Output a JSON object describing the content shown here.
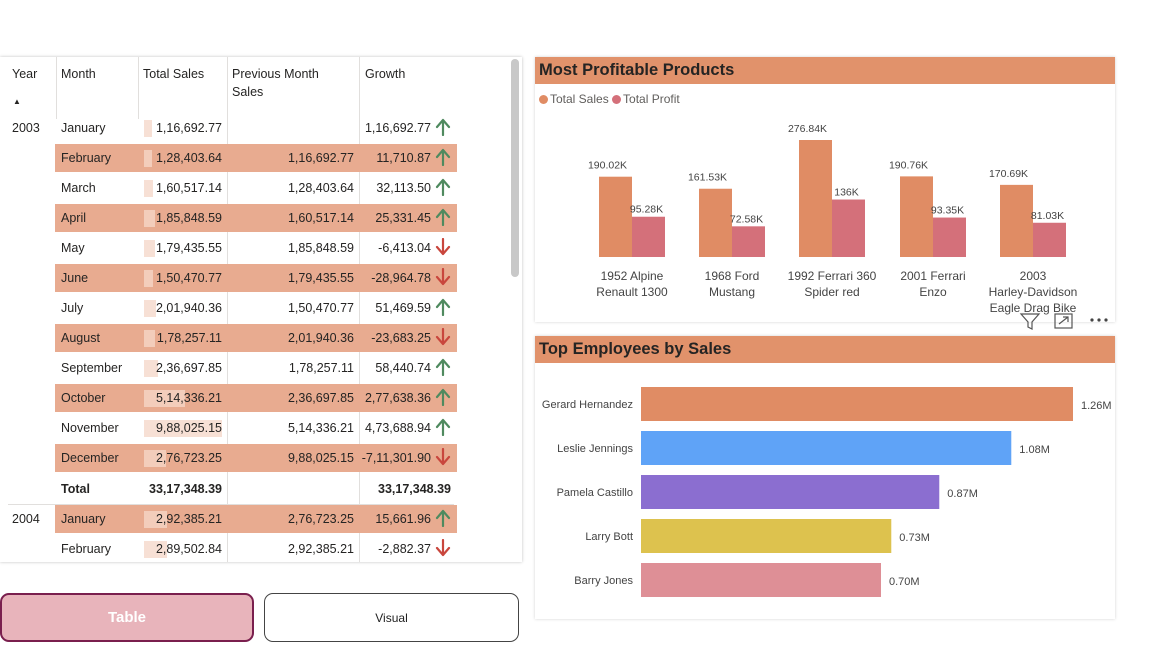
{
  "table": {
    "headers": {
      "year": "Year",
      "month": "Month",
      "total_sales": "Total Sales",
      "previous_month_line1": "Previous Month",
      "previous_month_line2": "Sales",
      "growth": "Growth"
    },
    "rows": [
      {
        "year": "2003",
        "month": "January",
        "total_sales": "1,16,692.77",
        "previous": "",
        "growth": "1,16,692.77",
        "dir": "up",
        "bar": 0.09,
        "shade": false
      },
      {
        "year": "",
        "month": "February",
        "total_sales": "1,28,403.64",
        "previous": "1,16,692.77",
        "growth": "11,710.87",
        "dir": "up",
        "bar": 0.1,
        "shade": true
      },
      {
        "year": "",
        "month": "March",
        "total_sales": "1,60,517.14",
        "previous": "1,28,403.64",
        "growth": "32,113.50",
        "dir": "up",
        "bar": 0.12,
        "shade": false
      },
      {
        "year": "",
        "month": "April",
        "total_sales": "1,85,848.59",
        "previous": "1,60,517.14",
        "growth": "25,331.45",
        "dir": "up",
        "bar": 0.14,
        "shade": true
      },
      {
        "year": "",
        "month": "May",
        "total_sales": "1,79,435.55",
        "previous": "1,85,848.59",
        "growth": "-6,413.04",
        "dir": "down",
        "bar": 0.14,
        "shade": false
      },
      {
        "year": "",
        "month": "June",
        "total_sales": "1,50,470.77",
        "previous": "1,79,435.55",
        "growth": "-28,964.78",
        "dir": "down",
        "bar": 0.12,
        "shade": true
      },
      {
        "year": "",
        "month": "July",
        "total_sales": "2,01,940.36",
        "previous": "1,50,470.77",
        "growth": "51,469.59",
        "dir": "up",
        "bar": 0.16,
        "shade": false
      },
      {
        "year": "",
        "month": "August",
        "total_sales": "1,78,257.11",
        "previous": "2,01,940.36",
        "growth": "-23,683.25",
        "dir": "down",
        "bar": 0.14,
        "shade": true
      },
      {
        "year": "",
        "month": "September",
        "total_sales": "2,36,697.85",
        "previous": "1,78,257.11",
        "growth": "58,440.74",
        "dir": "up",
        "bar": 0.18,
        "shade": false
      },
      {
        "year": "",
        "month": "October",
        "total_sales": "5,14,336.21",
        "previous": "2,36,697.85",
        "growth": "2,77,638.36",
        "dir": "up",
        "bar": 0.52,
        "shade": true
      },
      {
        "year": "",
        "month": "November",
        "total_sales": "9,88,025.15",
        "previous": "5,14,336.21",
        "growth": "4,73,688.94",
        "dir": "up",
        "bar": 1.0,
        "shade": false
      },
      {
        "year": "",
        "month": "December",
        "total_sales": "2,76,723.25",
        "previous": "9,88,025.15",
        "growth": "-7,11,301.90",
        "dir": "down",
        "bar": 0.28,
        "shade": true
      }
    ],
    "total": {
      "label": "Total",
      "total_sales": "33,17,348.39",
      "growth": "33,17,348.39"
    },
    "rows_2004": [
      {
        "year": "2004",
        "month": "January",
        "total_sales": "2,92,385.21",
        "previous": "2,76,723.25",
        "growth": "15,661.96",
        "dir": "up",
        "bar": 0.29,
        "shade": true
      },
      {
        "year": "",
        "month": "February",
        "total_sales": "2,89,502.84",
        "previous": "2,92,385.21",
        "growth": "-2,882.37",
        "dir": "down",
        "bar": 0.29,
        "shade": false
      }
    ]
  },
  "buttons": {
    "table": "Table",
    "visual": "Visual"
  },
  "colors": {
    "row_shade": "#e8ab90",
    "title_bar": "#e1926b",
    "total_sales": "#e08c64",
    "total_profit": "#d4707a",
    "arrow_up": "#4f8a5f",
    "arrow_down": "#c9463d"
  },
  "profit_chart": {
    "title": "Most Profitable Products",
    "legend": [
      "Total Sales",
      "Total Profit"
    ]
  },
  "employee_chart": {
    "title": "Top Employees by Sales"
  },
  "chart_data": [
    {
      "type": "bar",
      "title": "Most Profitable Products",
      "categories": [
        "1952 Alpine Renault 1300",
        "1968 Ford Mustang",
        "1992 Ferrari 360 Spider red",
        "2001 Ferrari Enzo",
        "2003 Harley-Davidson Eagle Drag Bike"
      ],
      "category_lines": [
        [
          "1952 Alpine",
          "Renault 1300"
        ],
        [
          "1968 Ford",
          "Mustang"
        ],
        [
          "1992 Ferrari 360",
          "Spider red"
        ],
        [
          "2001 Ferrari",
          "Enzo"
        ],
        [
          "2003",
          "Harley-Davidson",
          "Eagle Drag Bike"
        ]
      ],
      "series": [
        {
          "name": "Total Sales",
          "values": [
            190.02,
            161.53,
            276.84,
            190.76,
            170.69
          ],
          "labels": [
            "190.02K",
            "161.53K",
            "276.84K",
            "190.76K",
            "170.69K"
          ],
          "color": "#e08c64"
        },
        {
          "name": "Total Profit",
          "values": [
            95.28,
            72.58,
            136,
            93.35,
            81.03
          ],
          "labels": [
            "95.28K",
            "72.58K",
            "136K",
            "93.35K",
            "81.03K"
          ],
          "color": "#d4707a"
        }
      ],
      "legend_position": "top-left"
    },
    {
      "type": "bar",
      "orientation": "horizontal",
      "title": "Top Employees by Sales",
      "categories": [
        "Gerard Hernandez",
        "Leslie Jennings",
        "Pamela Castillo",
        "Larry Bott",
        "Barry Jones"
      ],
      "values": [
        1.26,
        1.08,
        0.87,
        0.73,
        0.7
      ],
      "labels": [
        "1.26M",
        "1.08M",
        "0.87M",
        "0.73M",
        "0.70M"
      ],
      "colors": [
        "#e08c64",
        "#5fa3f7",
        "#8b6ed0",
        "#ddc24e",
        "#de8f96"
      ]
    }
  ]
}
